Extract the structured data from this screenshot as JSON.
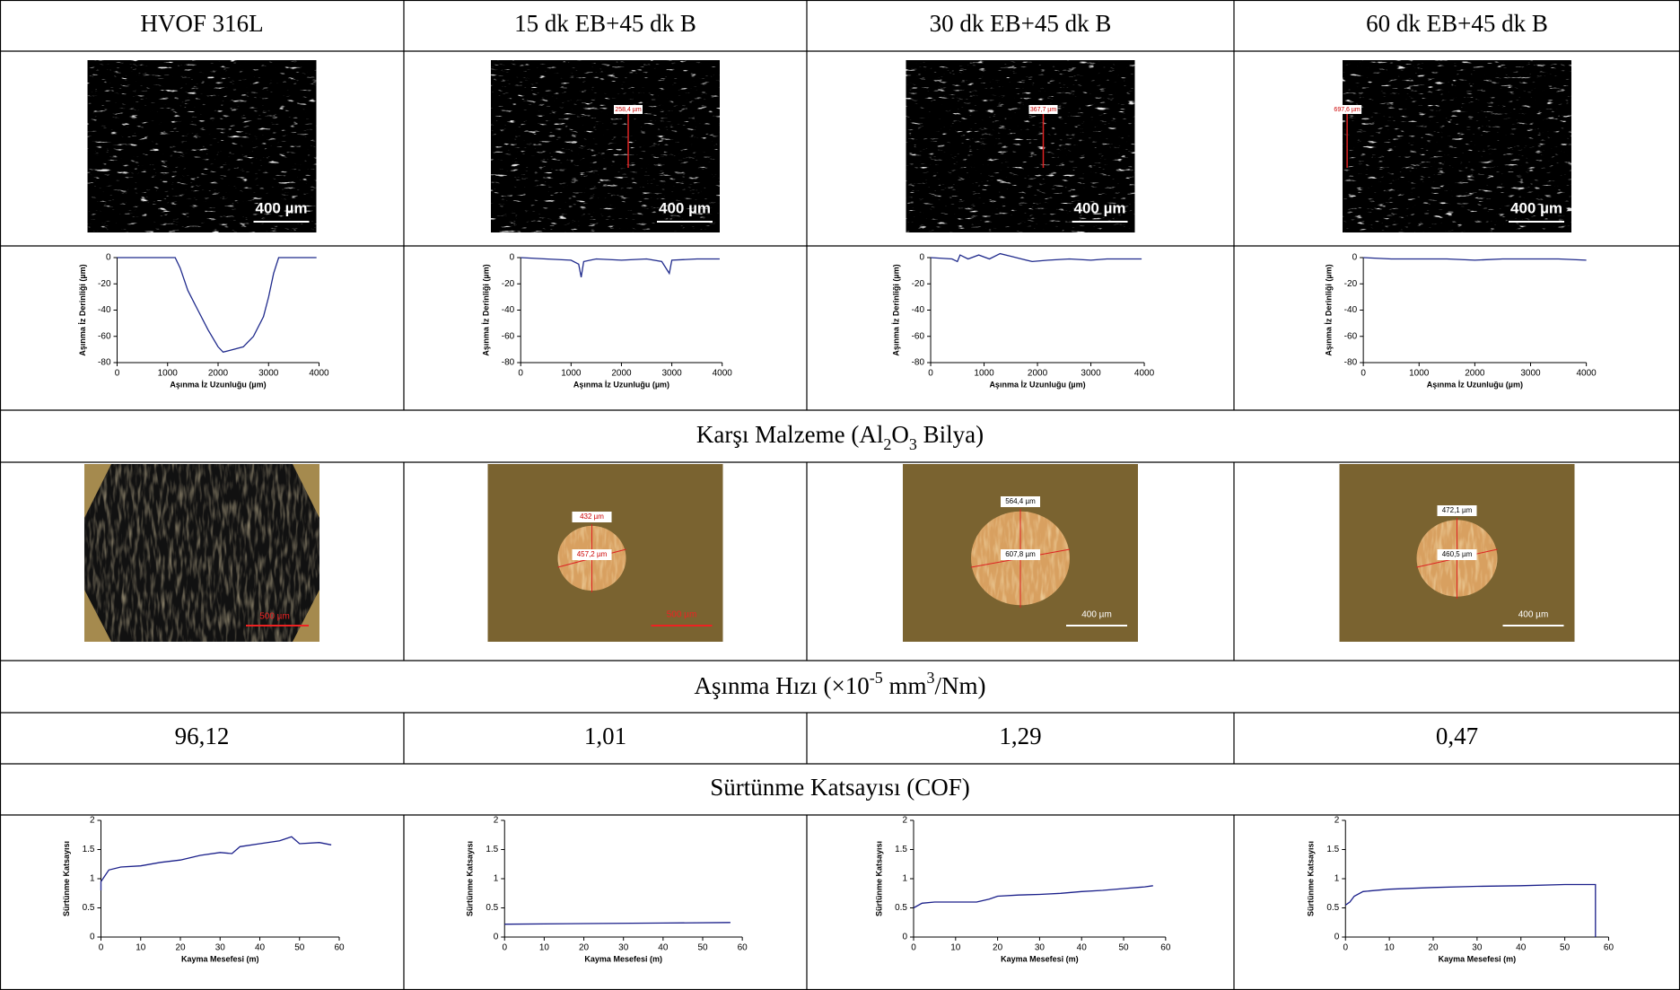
{
  "table": {
    "headers": [
      "HVOF 316L",
      "15 dk EB+45 dk B",
      "30 dk EB+45 dk B",
      "60 dk EB+45 dk B"
    ],
    "micrographs": [
      {
        "scale_label": "400 µm"
      },
      {
        "scale_label": "400 µm",
        "measure_label": "258,4 µm"
      },
      {
        "scale_label": "400 µm",
        "measure_label": "367,7 µm"
      },
      {
        "scale_label": "400 µm",
        "measure_label": "697,6 µm"
      }
    ],
    "profile_charts": [
      {
        "type": "line",
        "color": "#1f2a8c",
        "xlabel": "Aşınma İz Uzunluğu (µm)",
        "ylabel": "Aşınma İz Derinliği (µm)",
        "xlim": [
          0,
          4000
        ],
        "ylim": [
          -80,
          0
        ],
        "xticks": [
          0,
          1000,
          2000,
          3000,
          4000
        ],
        "yticks": [
          0,
          -20,
          -40,
          -60,
          -80
        ],
        "x": [
          0,
          1150,
          1250,
          1400,
          1600,
          1800,
          2000,
          2100,
          2300,
          2500,
          2700,
          2900,
          3000,
          3100,
          3200,
          3950
        ],
        "values": [
          0,
          0,
          -8,
          -25,
          -40,
          -55,
          -68,
          -72,
          -70,
          -68,
          -60,
          -45,
          -30,
          -12,
          0,
          0
        ]
      },
      {
        "type": "line",
        "color": "#1f2a8c",
        "xlabel": "Aşınma İz Uzunluğu (µm)",
        "ylabel": "Aşınma İz Derinliği (µm)",
        "xlim": [
          0,
          4000
        ],
        "ylim": [
          -80,
          0
        ],
        "xticks": [
          0,
          1000,
          2000,
          3000,
          4000
        ],
        "yticks": [
          0,
          -20,
          -40,
          -60,
          -80
        ],
        "x": [
          0,
          500,
          1000,
          1150,
          1200,
          1250,
          1500,
          2000,
          2500,
          2800,
          2950,
          3000,
          3500,
          3950
        ],
        "values": [
          0,
          -1,
          -2,
          -5,
          -15,
          -3,
          -1,
          -2,
          -1,
          -3,
          -12,
          -2,
          -1,
          -1
        ]
      },
      {
        "type": "line",
        "color": "#1f2a8c",
        "xlabel": "Aşınma İz Uzunluğu (µm)",
        "ylabel": "Aşınma İz Derinliği (µm)",
        "xlim": [
          0,
          4000
        ],
        "ylim": [
          -80,
          0
        ],
        "xticks": [
          0,
          1000,
          2000,
          3000,
          4000
        ],
        "yticks": [
          0,
          -20,
          -40,
          -60,
          -80
        ],
        "x": [
          0,
          400,
          500,
          550,
          700,
          900,
          1100,
          1300,
          1500,
          1700,
          1900,
          2200,
          2600,
          3000,
          3300,
          3950
        ],
        "values": [
          0,
          -1,
          -3,
          2,
          -1,
          2,
          -1,
          3,
          1,
          -1,
          -3,
          -2,
          -1,
          -2,
          -1,
          -1
        ]
      },
      {
        "type": "line",
        "color": "#1f2a8c",
        "xlabel": "Aşınma İz Uzunluğu (µm)",
        "ylabel": "Aşınma İz Derinliği (µm)",
        "xlim": [
          0,
          4000
        ],
        "ylim": [
          -80,
          0
        ],
        "xticks": [
          0,
          1000,
          2000,
          3000,
          4000
        ],
        "yticks": [
          0,
          -20,
          -40,
          -60,
          -80
        ],
        "x": [
          0,
          500,
          1000,
          1500,
          2000,
          2500,
          3000,
          3500,
          4000
        ],
        "values": [
          0,
          -1,
          -1,
          -1,
          -2,
          -1,
          -1,
          -1,
          -2
        ]
      }
    ],
    "counter_material": [
      "Karşı Malzeme (Al",
      "2",
      "O",
      "3",
      " Bilya)"
    ],
    "balls": [
      {
        "scale_label": "500 µm"
      },
      {
        "scale_label": "500 µm",
        "measure_labels": [
          "432 µm",
          "457,2 µm"
        ]
      },
      {
        "scale_label": "400 µm",
        "measure_labels": [
          "564,4 µm",
          "607,8 µm"
        ]
      },
      {
        "scale_label": "400 µm",
        "measure_labels": [
          "472,1 µm",
          "460,5 µm"
        ]
      }
    ],
    "wear_rate_title": [
      "Aşınma Hızı (×10",
      "-5",
      " mm",
      "3",
      "/Nm)"
    ],
    "wear_rates": [
      "96,12",
      "1,01",
      "1,29",
      "0,47"
    ],
    "cof_title": "Sürtünme Katsayısı (COF)",
    "cof_charts": [
      {
        "type": "line",
        "color": "#1a1f8a",
        "xlabel": "Kayma Mesefesi (m)",
        "ylabel": "Sürtünme Katsayısı",
        "xlim": [
          0,
          60
        ],
        "ylim": [
          0,
          2
        ],
        "xticks": [
          0,
          10,
          20,
          30,
          40,
          50,
          60
        ],
        "yticks": [
          0,
          0.5,
          1,
          1.5,
          2
        ],
        "x": [
          0,
          0,
          1,
          2,
          5,
          10,
          15,
          20,
          25,
          30,
          33,
          35,
          40,
          45,
          48,
          50,
          55,
          58
        ],
        "values": [
          0.8,
          0.95,
          1.05,
          1.15,
          1.2,
          1.22,
          1.28,
          1.32,
          1.4,
          1.45,
          1.43,
          1.55,
          1.6,
          1.65,
          1.72,
          1.6,
          1.62,
          1.58
        ]
      },
      {
        "type": "line",
        "color": "#1a1f8a",
        "xlabel": "Kayma Mesefesi (m)",
        "ylabel": "Sürtünme Katsayısı",
        "xlim": [
          0,
          60
        ],
        "ylim": [
          0,
          2
        ],
        "xticks": [
          0,
          10,
          20,
          30,
          40,
          50,
          60
        ],
        "yticks": [
          0,
          0.5,
          1,
          1.5,
          2
        ],
        "x": [
          0,
          20,
          40,
          57
        ],
        "values": [
          0.22,
          0.23,
          0.24,
          0.25
        ]
      },
      {
        "type": "line",
        "color": "#1a1f8a",
        "xlabel": "Kayma Mesefesi (m)",
        "ylabel": "Sürtünme Katsayısı",
        "xlim": [
          0,
          60
        ],
        "ylim": [
          0,
          2
        ],
        "xticks": [
          0,
          10,
          20,
          30,
          40,
          50,
          60
        ],
        "yticks": [
          0,
          0.5,
          1,
          1.5,
          2
        ],
        "x": [
          0,
          2,
          5,
          15,
          18,
          20,
          25,
          30,
          35,
          40,
          45,
          50,
          55,
          57
        ],
        "values": [
          0.5,
          0.58,
          0.6,
          0.6,
          0.65,
          0.7,
          0.72,
          0.73,
          0.75,
          0.78,
          0.8,
          0.83,
          0.86,
          0.88
        ]
      },
      {
        "type": "line",
        "color": "#1a1f8a",
        "xlabel": "Kayma Mesefesi (m)",
        "ylabel": "Sürtünme Katsayısı",
        "xlim": [
          0,
          60
        ],
        "ylim": [
          0,
          2
        ],
        "xticks": [
          0,
          10,
          20,
          30,
          40,
          50,
          60
        ],
        "yticks": [
          0,
          0.5,
          1,
          1.5,
          2
        ],
        "x": [
          0,
          1,
          2,
          4,
          10,
          20,
          30,
          40,
          50,
          57,
          57
        ],
        "values": [
          0.55,
          0.6,
          0.7,
          0.78,
          0.82,
          0.85,
          0.87,
          0.88,
          0.9,
          0.9,
          0
        ]
      }
    ]
  }
}
